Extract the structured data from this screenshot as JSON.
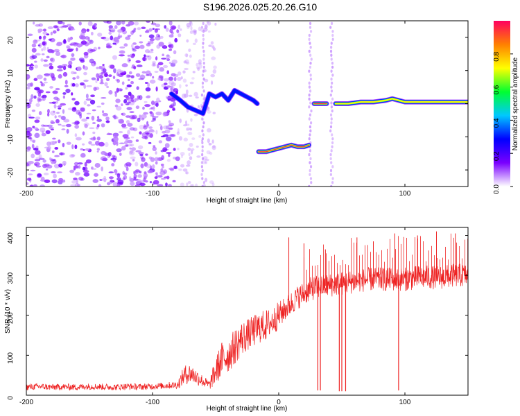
{
  "title": "S196.2026.025.20.26.G10",
  "colors": {
    "trace": "#ee2222",
    "frame": "#000000",
    "blob": "#7a2ee0"
  },
  "chart_data": [
    {
      "type": "heatmap",
      "xlabel": "Height of straight line (km)",
      "ylabel": "Frequency (Hz)",
      "xlim": [
        -200,
        150
      ],
      "ylim": [
        -25,
        25
      ],
      "xticks": [
        -200,
        -100,
        0,
        100
      ],
      "yticks": [
        -20,
        -10,
        0,
        10,
        20
      ],
      "colorbar": {
        "label": "Normalized spectral amplitude",
        "range": [
          0,
          1
        ],
        "ticks": [
          "0.0",
          "0.2",
          "0.4",
          "0.6",
          "0.8"
        ],
        "stops": [
          "#ffffff",
          "#7a00ff",
          "#0000ff",
          "#00c8ff",
          "#00ff30",
          "#ffff00",
          "#ff8000",
          "#ff0060"
        ]
      },
      "ridges": [
        {
          "x": [
            -85,
            -78,
            -72,
            -66,
            -60,
            -55,
            -50,
            -45,
            -40,
            -35,
            -30,
            -25,
            -20,
            -17
          ],
          "y": [
            3,
            1,
            -1,
            -2,
            -3,
            3,
            2,
            3,
            1,
            4,
            3,
            2,
            1,
            0
          ],
          "level": 0.45
        },
        {
          "x": [
            -16,
            -10,
            -5,
            0,
            5,
            10,
            15,
            20,
            24
          ],
          "y": [
            -14.5,
            -14.5,
            -14,
            -13.5,
            -13,
            -12.5,
            -13,
            -13,
            -12.5
          ],
          "level": 0.95
        },
        {
          "x": [
            28,
            33,
            38
          ],
          "y": [
            0,
            0,
            0
          ],
          "level": 0.95
        },
        {
          "x": [
            45,
            55,
            65,
            75,
            85,
            90,
            95,
            100,
            110,
            120,
            130,
            140,
            150
          ],
          "y": [
            0,
            0,
            0.5,
            0.5,
            1,
            1.5,
            1,
            0.5,
            0.5,
            0.5,
            0.5,
            0.5,
            0.5
          ],
          "level": 0.85
        }
      ],
      "noise_region_x": [
        -200,
        -80
      ],
      "vertical_streaks_x": [
        -60,
        25,
        42
      ]
    },
    {
      "type": "line",
      "xlabel": "Height of straight line (km)",
      "ylabel": "SNR (10 * v/v)",
      "xlim": [
        -200,
        150
      ],
      "ylim": [
        0,
        420
      ],
      "xticks": [
        -200,
        -100,
        0,
        100
      ],
      "yticks": [
        0,
        100,
        200,
        300,
        400
      ],
      "series": [
        {
          "name": "SNR",
          "x": [
            -200,
            -190,
            -180,
            -170,
            -160,
            -150,
            -140,
            -130,
            -120,
            -110,
            -100,
            -90,
            -80,
            -75,
            -70,
            -65,
            -60,
            -55,
            -50,
            -45,
            -40,
            -35,
            -30,
            -25,
            -20,
            -15,
            -10,
            -5,
            0,
            5,
            10,
            15,
            20,
            25,
            30,
            40,
            50,
            60,
            70,
            80,
            90,
            100,
            110,
            120,
            130,
            140,
            150
          ],
          "values": [
            20,
            22,
            20,
            21,
            20,
            22,
            21,
            20,
            22,
            21,
            22,
            24,
            26,
            50,
            55,
            45,
            35,
            25,
            60,
            90,
            100,
            120,
            140,
            150,
            160,
            170,
            175,
            185,
            200,
            215,
            230,
            245,
            255,
            265,
            270,
            275,
            280,
            285,
            290,
            290,
            290,
            290,
            295,
            295,
            295,
            300,
            300
          ],
          "noise": [
            8,
            8,
            8,
            8,
            8,
            8,
            8,
            8,
            8,
            8,
            8,
            8,
            10,
            25,
            25,
            20,
            15,
            12,
            35,
            45,
            45,
            45,
            45,
            40,
            40,
            40,
            40,
            35,
            35,
            30,
            30,
            30,
            30,
            30,
            30,
            30,
            30,
            30,
            30,
            30,
            30,
            30,
            30,
            30,
            30,
            30,
            30
          ],
          "spike_peaks": [
            {
              "x": 8,
              "y": 395
            },
            {
              "x": 20,
              "y": 380
            },
            {
              "x": 37,
              "y": 365
            },
            {
              "x": 62,
              "y": 395
            },
            {
              "x": 75,
              "y": 385
            },
            {
              "x": 92,
              "y": 405
            },
            {
              "x": 110,
              "y": 400
            },
            {
              "x": 125,
              "y": 410
            },
            {
              "x": 140,
              "y": 405
            }
          ],
          "dropouts": [
            {
              "x": 31,
              "y": 12
            },
            {
              "x": 33,
              "y": 12
            },
            {
              "x": 48,
              "y": 10
            },
            {
              "x": 50,
              "y": 10
            },
            {
              "x": 53,
              "y": 10
            },
            {
              "x": 95,
              "y": 12
            }
          ]
        }
      ]
    }
  ]
}
